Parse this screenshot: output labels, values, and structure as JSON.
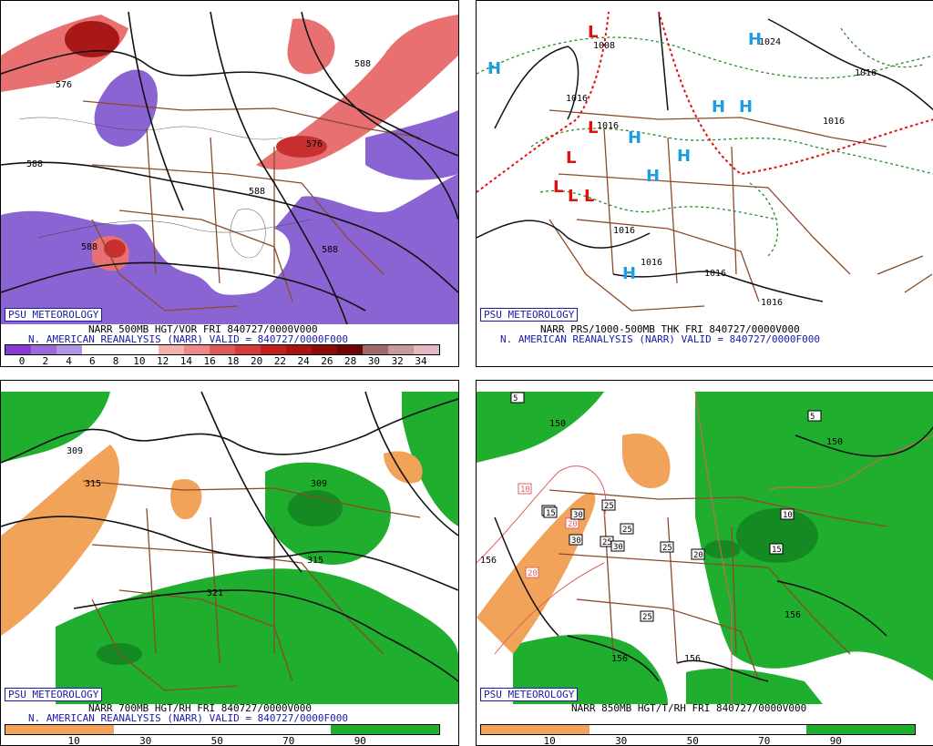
{
  "panels": [
    {
      "badge": "PSU METEOROLOGY",
      "caption_line1": "NARR 500MB HGT/VOR FRI 840727/0000V000",
      "caption_line2": "N. AMERICAN REANALYSIS (NARR) VALID = 840727/0000F000",
      "legend_ticks": [
        "0",
        "2",
        "4",
        "6",
        "8",
        "10",
        "12",
        "14",
        "16",
        "18",
        "20",
        "22",
        "24",
        "26",
        "28",
        "30",
        "32",
        "34"
      ],
      "legend_colors": [
        "#8a3bd6",
        "#9b6ad9",
        "#b294e6",
        "#ffffff",
        "#ffffff",
        "#ffffff",
        "#f5b0b0",
        "#ee8888",
        "#e05a5a",
        "#d63a3a",
        "#c31e1e",
        "#a81212",
        "#8c0a0a",
        "#6e0606",
        "#a06a6a",
        "#c89a9a",
        "#e6b8c4"
      ],
      "contour_labels": [
        "576",
        "588",
        "576",
        "588",
        "588",
        "588",
        "588"
      ]
    },
    {
      "badge": "PSU METEOROLOGY",
      "caption_line1": "NARR PRS/1000-500MB THK FRI 840727/0000V000",
      "caption_line2": "N. AMERICAN REANALYSIS (NARR) VALID = 840727/0000F000",
      "contour_labels": [
        "1008",
        "1024",
        "1016",
        "1016",
        "1016",
        "1016",
        "1016",
        "1016",
        "1016",
        "1016"
      ],
      "high_symbol": "H",
      "low_symbol": "L"
    },
    {
      "badge": "PSU METEOROLOGY",
      "caption_line1": "NARR 700MB HGT/RH FRI 840727/0000V000",
      "caption_line2": "N. AMERICAN REANALYSIS (NARR) VALID = 840727/0000F000",
      "legend_ticks": [
        "10",
        "30",
        "50",
        "70",
        "90"
      ],
      "contour_labels": [
        "309",
        "315",
        "309",
        "315",
        "321"
      ]
    },
    {
      "badge": "PSU METEOROLOGY",
      "caption_line1": "NARR 850MB HGT/T/RH FRI 840727/0000V000",
      "legend_ticks": [
        "10",
        "30",
        "50",
        "70",
        "90"
      ],
      "contour_labels": [
        "156",
        "150",
        "156",
        "156",
        "156",
        "150"
      ],
      "temp_labels": [
        "5",
        "10",
        "15",
        "20",
        "20",
        "25",
        "30",
        "30",
        "25",
        "25",
        "25",
        "25",
        "30",
        "10",
        "15",
        "20",
        "15",
        "5"
      ]
    }
  ],
  "colors": {
    "vort_purple": "#8a64d2",
    "vort_red": "#e87070",
    "vort_darkred": "#a81818",
    "rh_green": "#1fae2e",
    "rh_darkgreen": "#168a22",
    "rh_orange": "#f2a35a",
    "border_brown": "#8b4a2b",
    "high_blue": "#1aa0e0",
    "low_red": "#e01010",
    "thk_green": "#2a8a2a",
    "temp_red": "#e06060",
    "badge_blue": "#1a1aa6"
  }
}
